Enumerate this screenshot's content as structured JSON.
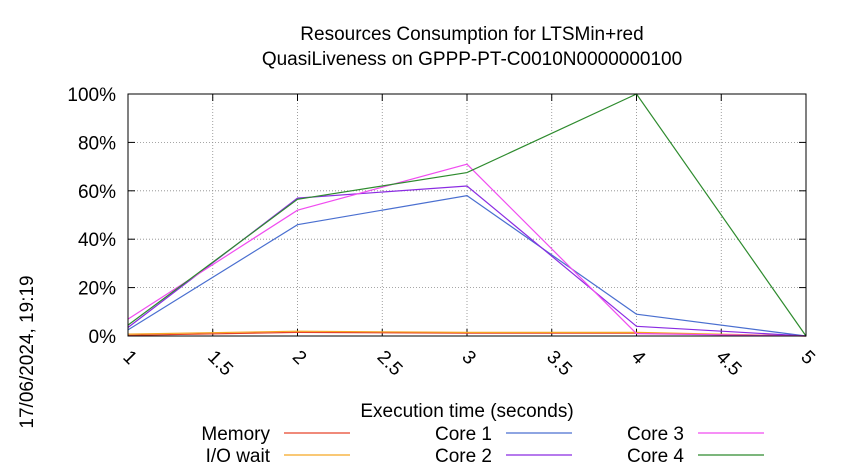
{
  "chart_data": {
    "type": "line",
    "title": [
      "Resources Consumption for LTSMin+red",
      "QuasiLiveness on GPPP-PT-C0010N0000000100"
    ],
    "xlabel": "Execution time (seconds)",
    "ylabel": "",
    "side_label": "17/06/2024, 19:19",
    "xlim": [
      1,
      5
    ],
    "ylim": [
      0,
      100
    ],
    "x_ticks": [
      1,
      1.5,
      2,
      2.5,
      3,
      3.5,
      4,
      4.5,
      5
    ],
    "y_ticks": [
      0,
      20,
      40,
      60,
      80,
      100
    ],
    "y_tick_labels": [
      "0%",
      "20%",
      "40%",
      "60%",
      "80%",
      "100%"
    ],
    "grid": true,
    "legend_position": "bottom",
    "x": [
      1,
      2,
      3,
      4,
      5
    ],
    "series": [
      {
        "name": "Memory",
        "color": "#e8432b",
        "values": [
          0.3,
          1.5,
          1.2,
          1.2,
          0
        ]
      },
      {
        "name": "I/O wait",
        "color": "#f5a623",
        "values": [
          0.8,
          2.0,
          1.5,
          1.5,
          0
        ]
      },
      {
        "name": "Core 1",
        "color": "#4a6fd0",
        "values": [
          2.5,
          46,
          58,
          9,
          0
        ]
      },
      {
        "name": "Core 2",
        "color": "#8a2be2",
        "values": [
          3.5,
          57,
          62,
          4,
          0
        ]
      },
      {
        "name": "Core 3",
        "color": "#f04cf0",
        "values": [
          7,
          52,
          71,
          1,
          0
        ]
      },
      {
        "name": "Core 4",
        "color": "#2e8b2e",
        "values": [
          4.5,
          56.5,
          67.5,
          100,
          0
        ]
      }
    ]
  }
}
